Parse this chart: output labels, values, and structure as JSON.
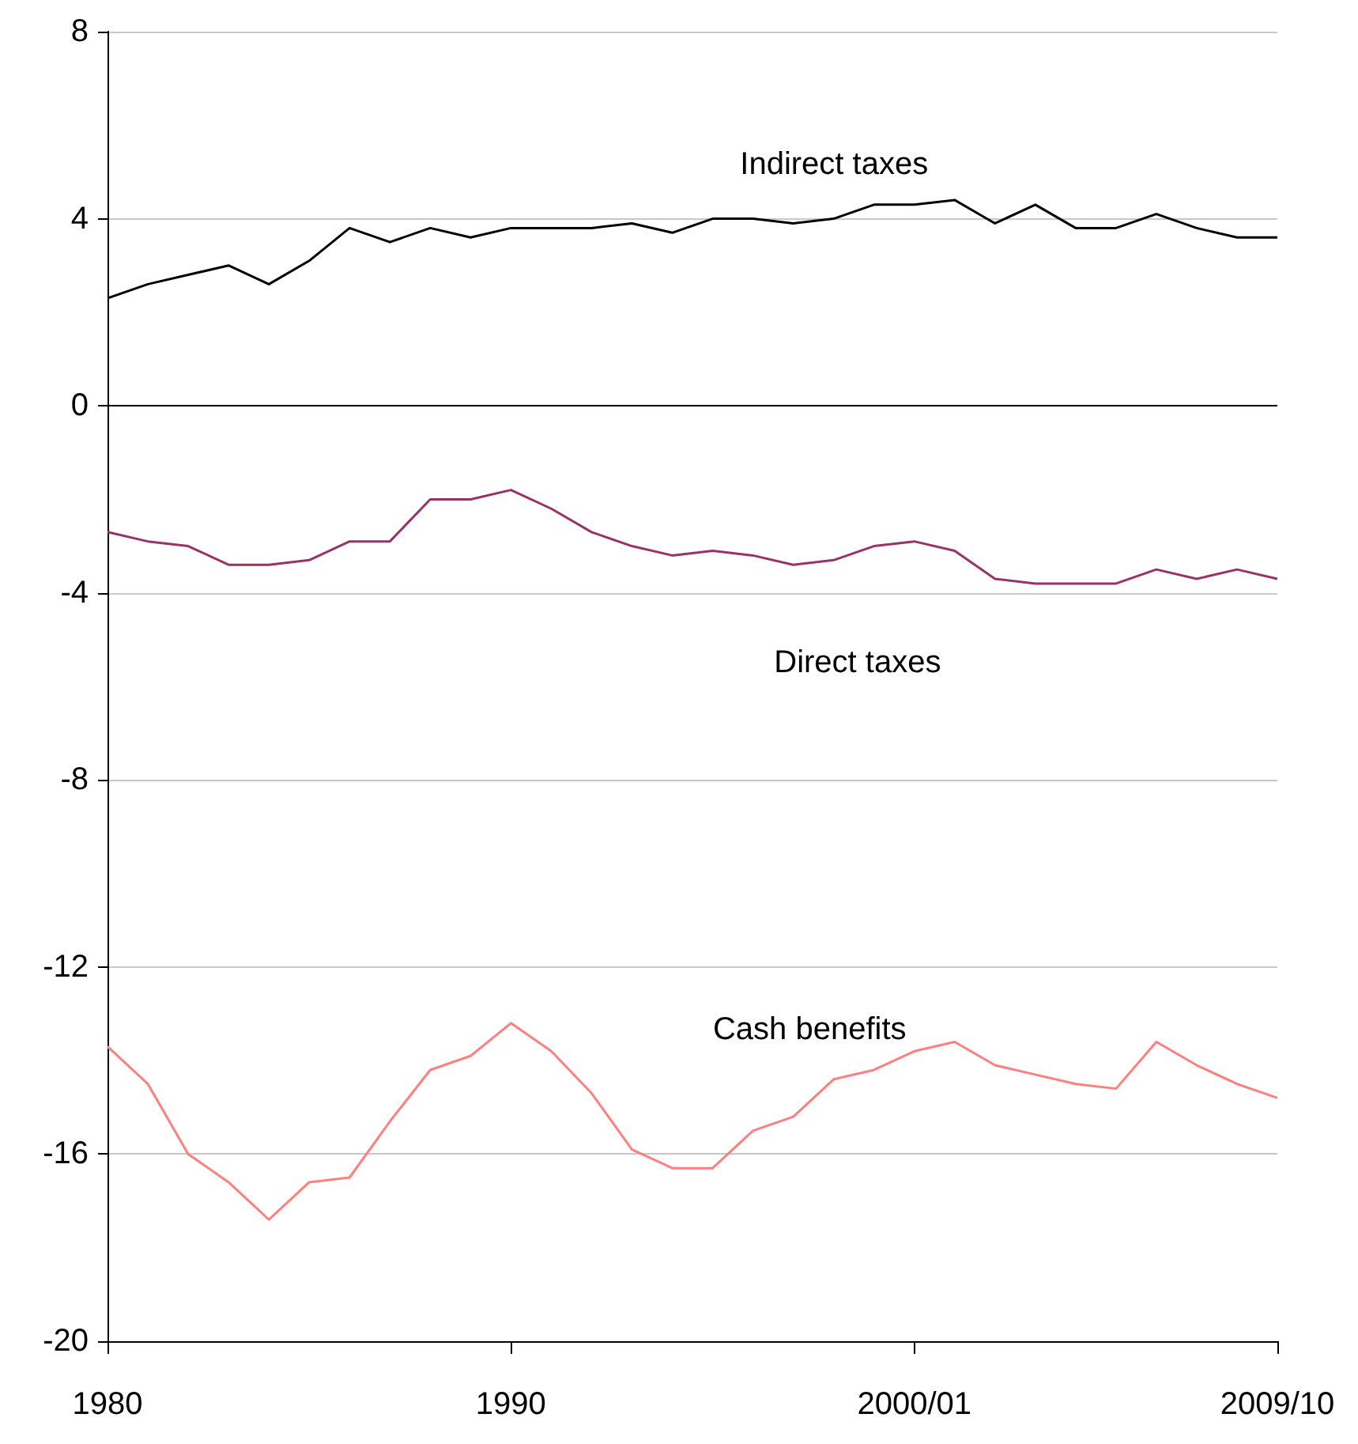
{
  "chart_data": {
    "type": "line",
    "categories": [
      "1980",
      null,
      null,
      null,
      null,
      null,
      null,
      null,
      null,
      null,
      "1990",
      null,
      null,
      null,
      null,
      null,
      null,
      null,
      null,
      null,
      "2000/01",
      null,
      null,
      null,
      null,
      null,
      null,
      null,
      null,
      "2009/10"
    ],
    "series": [
      {
        "color": "#000000",
        "values": [
          2.3,
          2.6,
          2.8,
          3.0,
          2.6,
          3.1,
          3.8,
          3.5,
          3.8,
          3.6,
          3.8,
          3.8,
          3.8,
          3.9,
          3.7,
          4.0,
          4.0,
          3.9,
          4.0,
          4.3,
          4.3,
          4.4,
          3.9,
          4.3,
          3.8,
          3.8,
          4.1,
          3.8,
          3.6,
          3.6
        ]
      },
      {
        "color": "#993366",
        "values": [
          -2.7,
          -2.9,
          -3.0,
          -3.4,
          -3.4,
          -3.3,
          -2.9,
          -2.9,
          -2.0,
          -2.0,
          -1.8,
          -2.2,
          -2.7,
          -3.0,
          -3.2,
          -3.1,
          -3.2,
          -3.4,
          -3.3,
          -3.0,
          -2.9,
          -3.1,
          -3.7,
          -3.8,
          -3.8,
          -3.8,
          -3.5,
          -3.7,
          -3.5,
          -3.7
        ]
      },
      {
        "color": "#ff8080",
        "values": [
          -13.7,
          -14.5,
          -16.0,
          -16.6,
          -17.4,
          -16.6,
          -16.5,
          -15.3,
          -14.2,
          -13.9,
          -13.2,
          -13.8,
          -14.7,
          -15.9,
          -16.3,
          -16.3,
          -15.5,
          -15.2,
          -14.4,
          -14.2,
          -13.8,
          -13.6,
          -14.1,
          -14.3,
          -14.5,
          -14.6,
          -13.6,
          -14.1,
          -14.5,
          -14.8
        ]
      }
    ],
    "annotations": [
      "Indirect taxes",
      "Direct taxes",
      "Cash benefits"
    ],
    "ylim": [
      -20,
      8
    ],
    "yticks": [
      -20,
      -16,
      -12,
      -8,
      -4,
      0,
      4,
      8
    ],
    "grid": "y",
    "marker": "none",
    "line_style": "solid"
  }
}
